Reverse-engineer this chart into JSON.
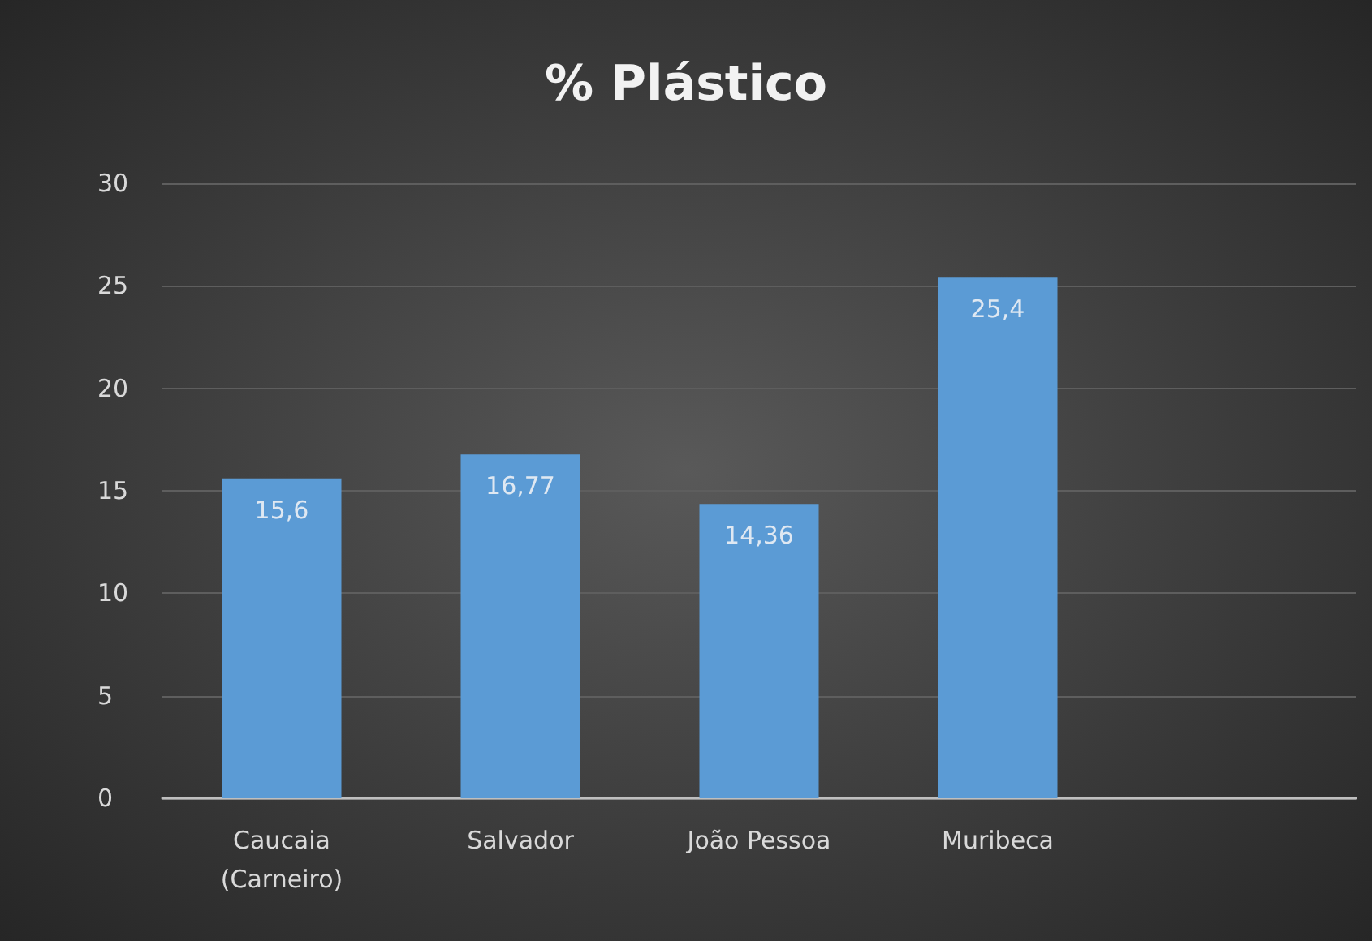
{
  "chart_data": {
    "type": "bar",
    "title": "% Plástico",
    "categories": [
      "Caucaia\n(Carneiro)",
      "Salvador",
      "João Pessoa",
      "Muribeca",
      null
    ],
    "values": [
      15.6,
      16.77,
      14.36,
      25.4,
      null
    ],
    "value_labels": [
      "15,6",
      "16,77",
      "14,36",
      "25,4",
      null
    ],
    "color": "#5b9bd5",
    "ylim": [
      0,
      30
    ],
    "yticks": [
      0,
      5,
      10,
      15,
      20,
      25,
      30
    ],
    "grid": "y"
  }
}
